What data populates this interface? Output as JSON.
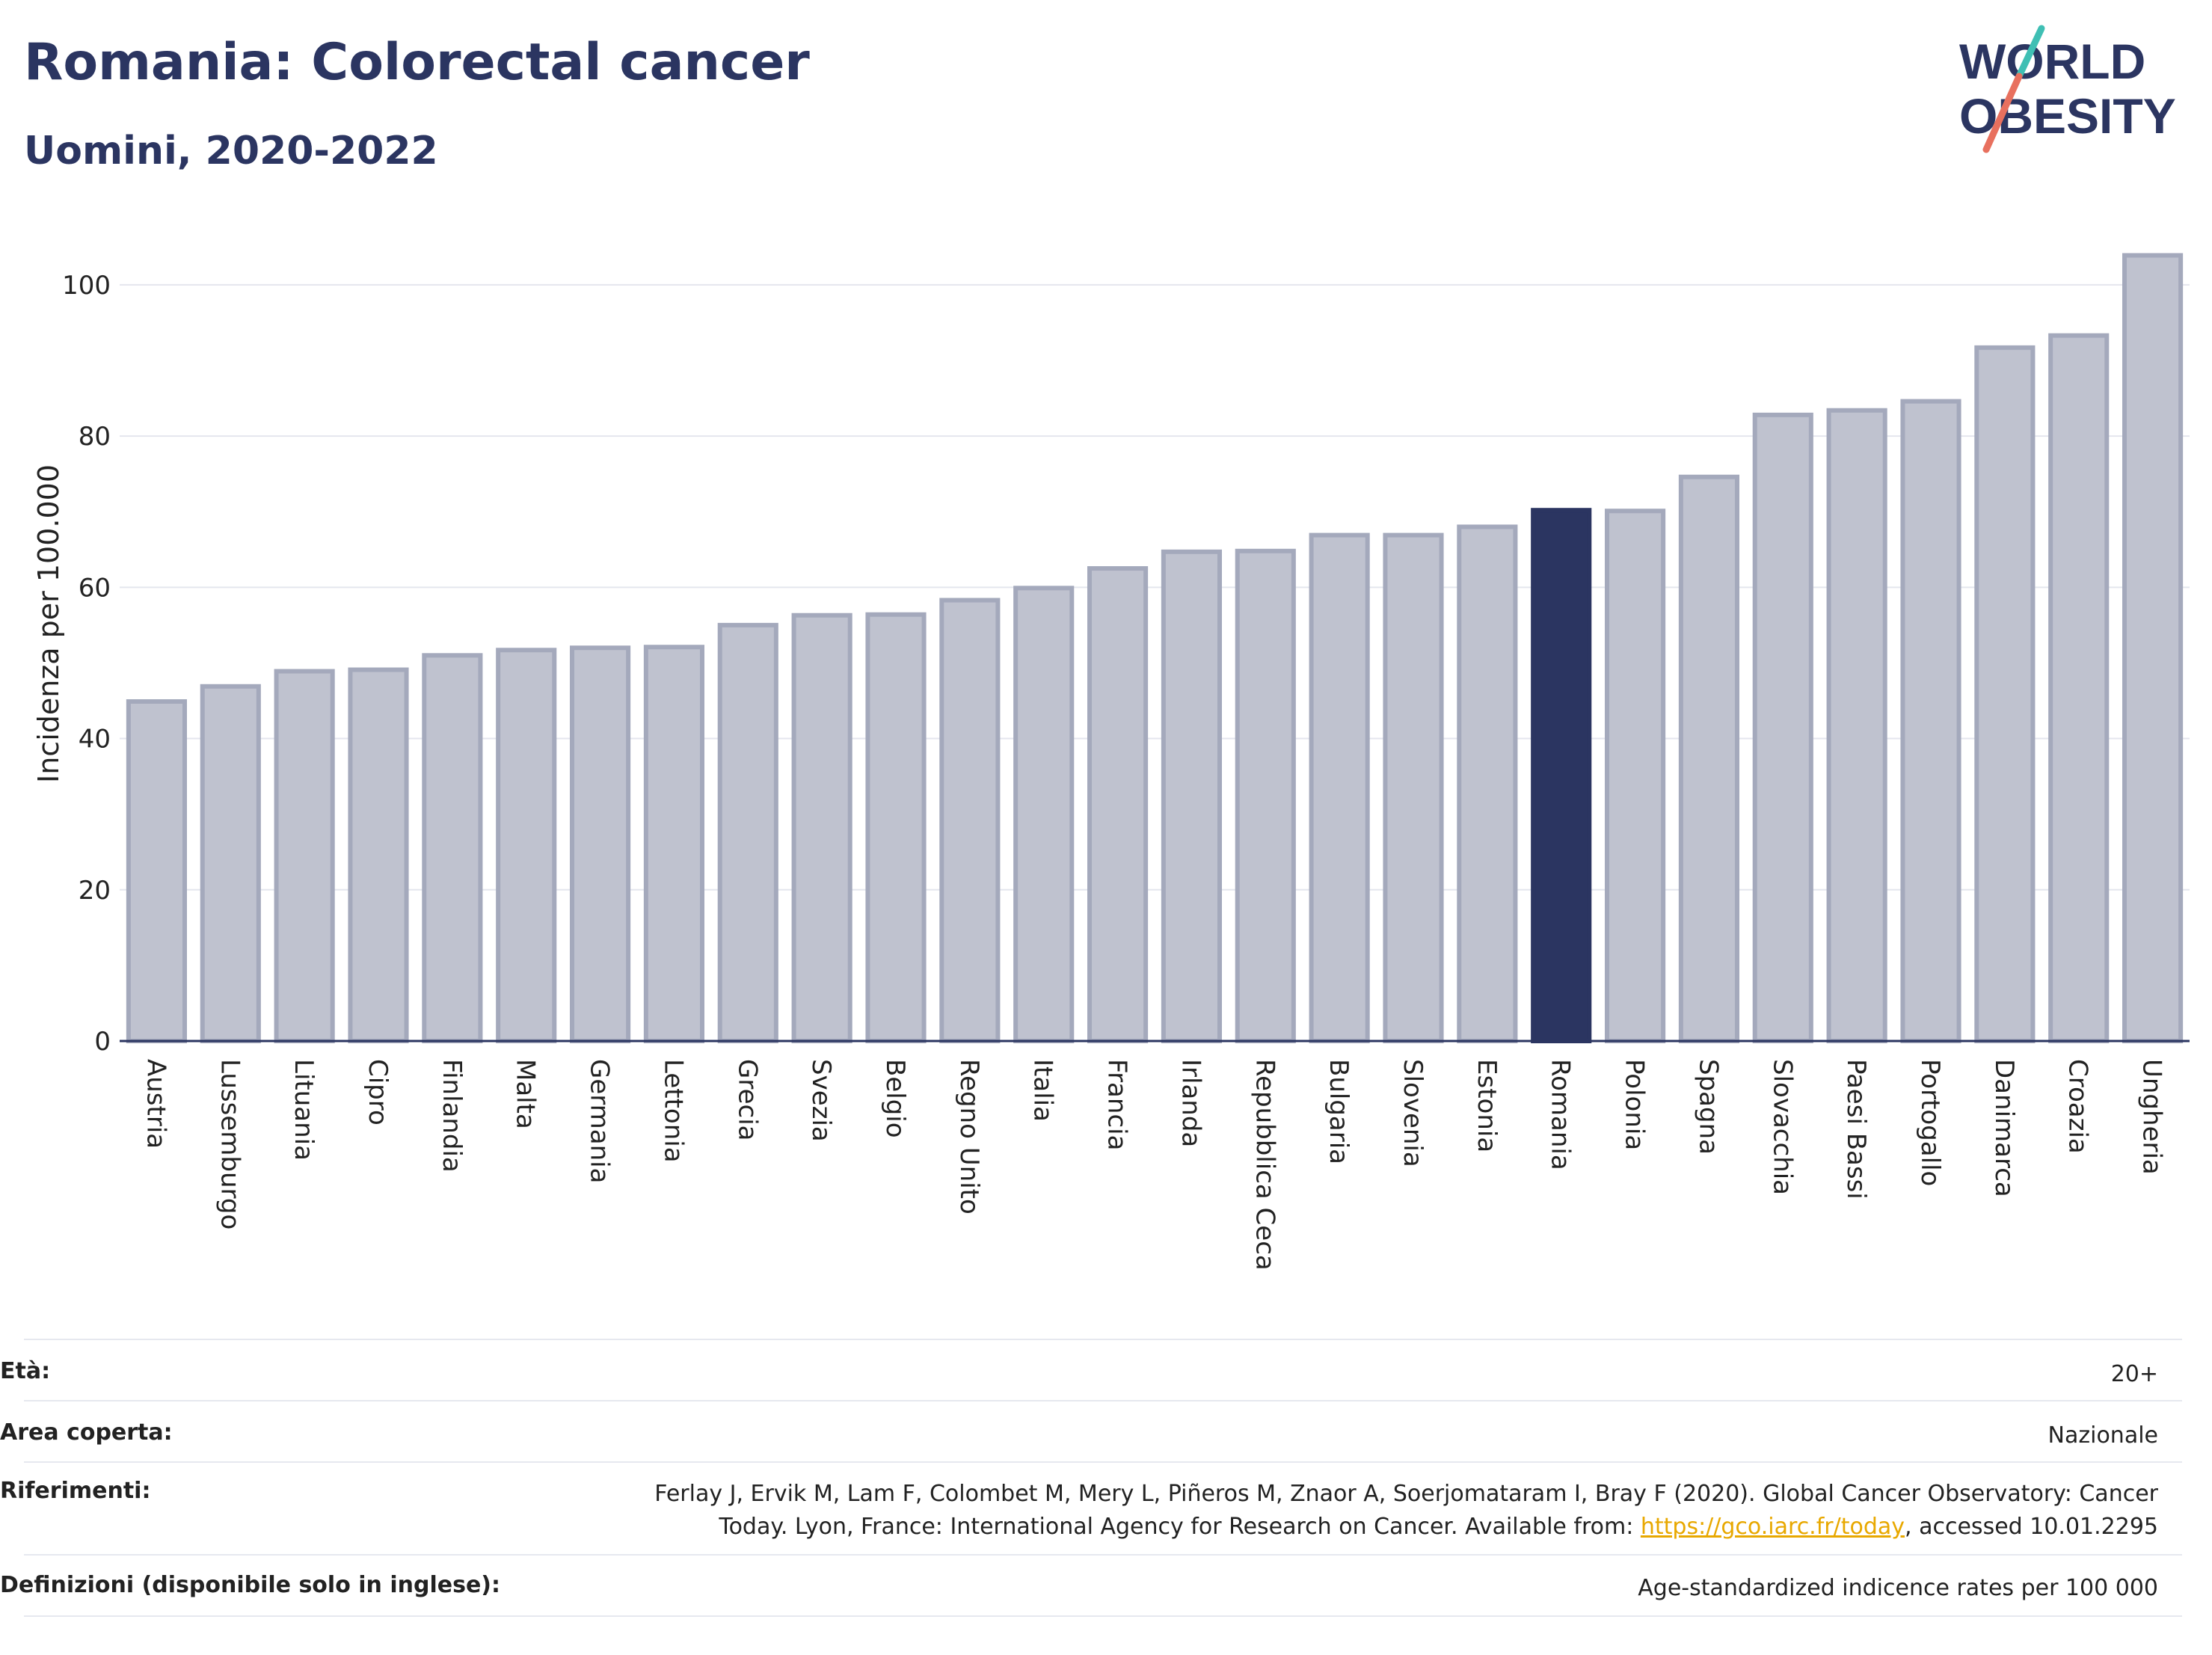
{
  "header": {
    "title": "Romania: Colorectal cancer",
    "subtitle": "Uomini, 2020-2022"
  },
  "logo": {
    "line1": "WORLD",
    "line2": "OBESITY",
    "brand_color": "#2b3561",
    "slash_colors": [
      "#3fbfb4",
      "#e8705e"
    ]
  },
  "chart_data": {
    "type": "bar",
    "title": "Romania: Colorectal cancer",
    "subtitle": "Uomini, 2020-2022",
    "xlabel": "",
    "ylabel": "Incidenza per 100.000",
    "ylim": [
      0,
      108
    ],
    "yticks": [
      0,
      20,
      40,
      60,
      80,
      100
    ],
    "grid": true,
    "highlight": "Romania",
    "colors": {
      "bar": "#bfc2cf",
      "bar_border": "#a4a9bc",
      "highlight": "#2b3561",
      "grid": "#e4e6ee",
      "axis": "#2b3561"
    },
    "categories": [
      "Austria",
      "Lussemburgo",
      "Lituania",
      "Cipro",
      "Finlandia",
      "Malta",
      "Germania",
      "Lettonia",
      "Grecia",
      "Svezia",
      "Belgio",
      "Regno Unito",
      "Italia",
      "Francia",
      "Irlanda",
      "Repubblica Ceca",
      "Bulgaria",
      "Slovenia",
      "Estonia",
      "Romania",
      "Polonia",
      "Spagna",
      "Slovacchia",
      "Paesi Bassi",
      "Portogallo",
      "Danimarca",
      "Croazia",
      "Ungheria"
    ],
    "values": [
      44.9,
      46.9,
      48.9,
      49.1,
      51.0,
      51.7,
      52.0,
      52.1,
      55.0,
      56.3,
      56.4,
      58.3,
      59.9,
      62.5,
      64.7,
      64.8,
      66.9,
      66.9,
      68.0,
      70.2,
      70.1,
      74.6,
      82.8,
      83.4,
      84.6,
      91.7,
      93.3,
      103.9
    ]
  },
  "metadata": {
    "eta_label": "Età:",
    "eta_value": "20+",
    "area_label": "Area coperta:",
    "area_value": "Nazionale",
    "ref_label": "Riferimenti:",
    "ref_text_1": "Ferlay J, Ervik M, Lam F, Colombet M, Mery L, Piñeros M, Znaor A, Soerjomataram I, Bray F (2020). Global Cancer Observatory: Cancer",
    "ref_text_2a": "Today. Lyon, France: International Agency for Research on Cancer. Available from: ",
    "ref_link": "https://gco.iarc.fr/today",
    "ref_text_2b": ", accessed 10.01.2295",
    "def_label": "Definizioni (disponibile solo in inglese):",
    "def_value": "Age-standardized indicence rates per 100 000"
  }
}
